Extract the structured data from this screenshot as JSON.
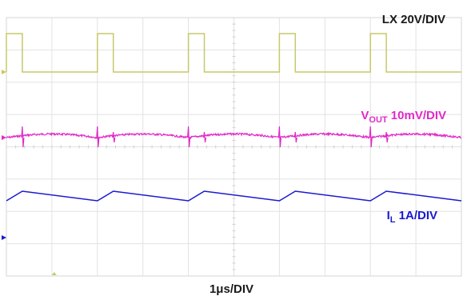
{
  "chart_data": {
    "type": "line",
    "title": "",
    "xlabel": "1μs/DIV",
    "ylabel": "",
    "grid": true,
    "x_divisions": 10,
    "y_divisions": 8,
    "x_unit": "μs",
    "x_range": [
      0,
      10
    ],
    "switching_period_us": 2.0,
    "channels": [
      {
        "name_main": "LX",
        "name_sub": "",
        "scale": "20V/DIV",
        "color": "#c8c86a",
        "waveform": "square",
        "high_level_v": 40,
        "low_level_v": 0,
        "high_intervals_us": [
          [
            0.0,
            0.35
          ],
          [
            2.0,
            2.35
          ],
          [
            4.0,
            4.35
          ],
          [
            6.0,
            6.35
          ],
          [
            8.0,
            8.35
          ]
        ]
      },
      {
        "name_main": "V",
        "name_sub": "OUT",
        "scale": "10mV/DIV",
        "color": "#e02ac8",
        "waveform": "ripple",
        "ripple_mv_pp": 8,
        "spike_times_us": [
          0.35,
          2.0,
          2.35,
          4.0,
          4.35,
          6.0,
          6.35,
          8.0,
          8.35
        ]
      },
      {
        "name_main": "I",
        "name_sub": "L",
        "scale": "1A/DIV",
        "color": "#1a1acf",
        "waveform": "triangle",
        "peak_times_us": [
          0.35,
          2.35,
          4.35,
          6.35,
          8.35
        ],
        "valley_times_us": [
          0.0,
          2.0,
          4.0,
          6.0,
          8.0,
          10.0
        ],
        "ripple_a_pp": 0.5
      }
    ]
  }
}
